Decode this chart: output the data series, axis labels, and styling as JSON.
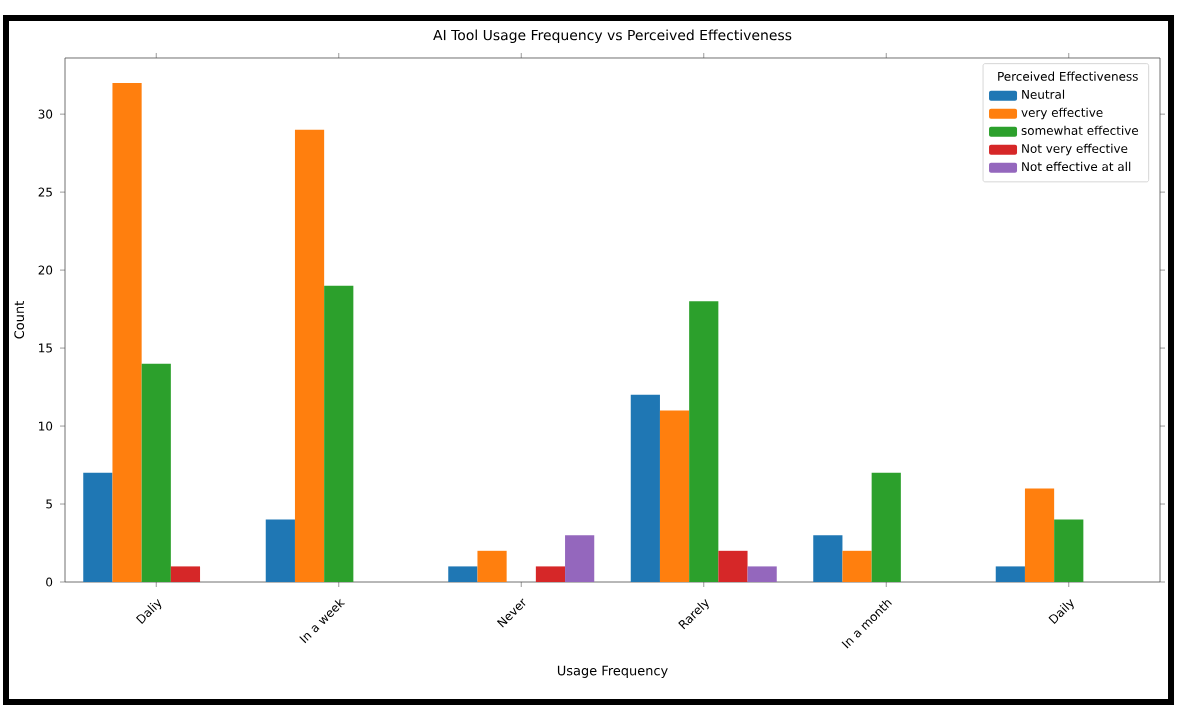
{
  "chart_data": {
    "type": "bar",
    "title": "AI Tool Usage Frequency vs Perceived Effectiveness",
    "xlabel": "Usage Frequency",
    "ylabel": "Count",
    "legend_title": "Perceived Effectiveness",
    "categories": [
      "Daliy",
      "In a week",
      "Never",
      "Rarely",
      "In a month",
      "Daily"
    ],
    "series": [
      {
        "name": "Neutral",
        "color": "#1f77b4",
        "values": [
          7,
          4,
          1,
          12,
          3,
          1
        ]
      },
      {
        "name": "very effective",
        "color": "#ff7f0e",
        "values": [
          32,
          29,
          2,
          11,
          2,
          6
        ]
      },
      {
        "name": "somewhat effective",
        "color": "#2ca02c",
        "values": [
          14,
          19,
          null,
          18,
          7,
          4
        ]
      },
      {
        "name": "Not very effective",
        "color": "#d62728",
        "values": [
          1,
          null,
          1,
          2,
          null,
          null
        ]
      },
      {
        "name": "Not effective at all",
        "color": "#9467bd",
        "values": [
          null,
          null,
          3,
          1,
          null,
          null
        ]
      }
    ],
    "ylim": [
      0,
      33.6
    ],
    "yticks": [
      0,
      5,
      10,
      15,
      20,
      25,
      30
    ],
    "legend": "top right",
    "grid": false
  }
}
